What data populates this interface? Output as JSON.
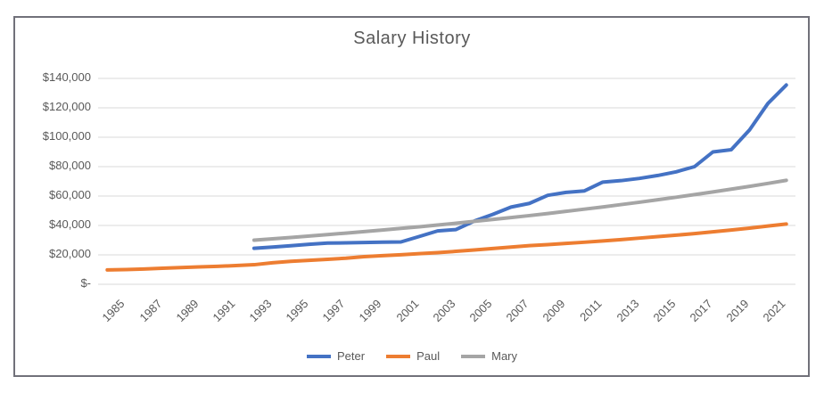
{
  "styles": {
    "frame_border_color": "#71717a",
    "axis_text_color": "#595959",
    "gridline_color": "#D9D9D9",
    "background_color": "#ffffff"
  },
  "chart_data": {
    "type": "line",
    "title": "Salary History",
    "xlabel": "",
    "ylabel": "",
    "ylim": [
      0,
      140000
    ],
    "grid": "horizontal",
    "legend_position": "bottom",
    "x_start_year": 1985,
    "x_end_year": 2022,
    "x_tick_labels": [
      "1985",
      "1987",
      "1989",
      "1991",
      "1993",
      "1995",
      "1997",
      "1999",
      "2001",
      "2003",
      "2005",
      "2007",
      "2009",
      "2011",
      "2013",
      "2015",
      "2017",
      "2019",
      "2021"
    ],
    "y_ticks": [
      {
        "value": 140000,
        "label": "$140,000"
      },
      {
        "value": 120000,
        "label": "$120,000"
      },
      {
        "value": 100000,
        "label": "$100,000"
      },
      {
        "value": 80000,
        "label": "$80,000"
      },
      {
        "value": 60000,
        "label": "$60,000"
      },
      {
        "value": 40000,
        "label": "$40,000"
      },
      {
        "value": 20000,
        "label": "$20,000"
      },
      {
        "value": 0,
        "label": "$-"
      }
    ],
    "series": [
      {
        "name": "Peter",
        "color": "#4472C4",
        "start_year": 1993,
        "values": [
          24500,
          25300,
          26200,
          27200,
          28000,
          28200,
          28400,
          28600,
          28800,
          32500,
          36300,
          37200,
          43000,
          47500,
          52500,
          55000,
          60500,
          62500,
          63500,
          69500,
          70500,
          72000,
          74000,
          76500,
          80000,
          90000,
          91500,
          105000,
          123000,
          135500
        ]
      },
      {
        "name": "Paul",
        "color": "#ED7D31",
        "start_year": 1985,
        "values": [
          9800,
          10000,
          10400,
          10900,
          11400,
          11800,
          12200,
          12700,
          13300,
          14600,
          15600,
          16300,
          17000,
          17700,
          18800,
          19500,
          20100,
          20800,
          21500,
          22400,
          23300,
          24300,
          25300,
          26300,
          27000,
          27800,
          28600,
          29500,
          30400,
          31400,
          32400,
          33400,
          34500,
          35700,
          36900,
          38200,
          39600,
          41000
        ]
      },
      {
        "name": "Mary",
        "color": "#A5A5A5",
        "start_year": 1993,
        "values": [
          30000,
          30900,
          31800,
          32800,
          33800,
          34800,
          35800,
          36900,
          38000,
          39100,
          40300,
          41500,
          42800,
          44100,
          45400,
          46700,
          48100,
          49600,
          51100,
          52600,
          54200,
          55800,
          57500,
          59200,
          61000,
          62800,
          64700,
          66600,
          68600,
          70700
        ]
      }
    ]
  }
}
